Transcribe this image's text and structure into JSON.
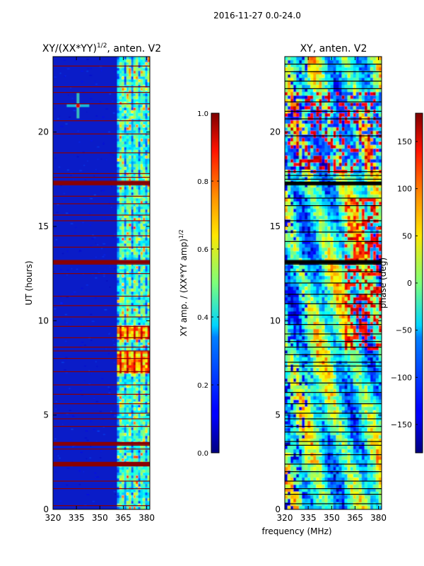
{
  "suptitle": "2016-11-27 0.0-24.0",
  "chart_data": [
    {
      "type": "heatmap",
      "title": "XY/(XX*YY)",
      "title_sup": "1/2",
      "title_suffix": ", anten. V2",
      "xlabel": "",
      "ylabel": "UT (hours)",
      "xlim": [
        320,
        382
      ],
      "ylim": [
        0,
        24
      ],
      "xticks": [
        320,
        335,
        350,
        365,
        380
      ],
      "yticks": [
        0,
        5,
        10,
        15,
        20
      ],
      "gap_hours": [
        0.2,
        1.1,
        1.5,
        2.3,
        2.4,
        2.5,
        3.2,
        3.4,
        3.5,
        4.4,
        4.8,
        5.1,
        5.6,
        6.1,
        6.6,
        7.3,
        8.0,
        8.4,
        8.6,
        9.1,
        9.7,
        10.2,
        10.8,
        11.3,
        12.5,
        13.0,
        13.1,
        13.2,
        13.9,
        14.5,
        15.3,
        15.6,
        16.2,
        16.6,
        17.2,
        17.3,
        17.4,
        17.6,
        17.8,
        18.9,
        19.9,
        20.6,
        21.5,
        22.1,
        22.4,
        23.5
      ],
      "bright_bands": [
        [
          7.2,
          8.4
        ],
        [
          9.0,
          9.8
        ]
      ],
      "rfi_spike": {
        "x": 336,
        "y": 21.4
      },
      "colorbar": {
        "label": "XY amp. / (XX*YY amp)",
        "label_sup": "1/2",
        "range": [
          0.0,
          1.0
        ],
        "ticks": [
          "0.0",
          "0.2",
          "0.4",
          "0.6",
          "0.8",
          "1.0"
        ]
      }
    },
    {
      "type": "heatmap",
      "title": "XY, anten. V2",
      "xlabel": "frequency (MHz)",
      "ylabel": "",
      "xlim": [
        320,
        382
      ],
      "ylim": [
        0,
        24
      ],
      "xticks": [
        320,
        335,
        350,
        365,
        380
      ],
      "yticks": [
        0,
        5,
        10,
        15,
        20
      ],
      "gap_hours": [
        0.3,
        0.8,
        1.1,
        1.5,
        2.0,
        2.4,
        2.9,
        3.4,
        3.6,
        4.1,
        4.4,
        4.8,
        5.1,
        5.6,
        6.2,
        6.7,
        7.3,
        7.6,
        7.8,
        8.2,
        8.6,
        8.9,
        9.3,
        9.8,
        10.3,
        10.9,
        11.4,
        12.0,
        12.6,
        13.0,
        13.1,
        13.2,
        14.2,
        14.7,
        15.3,
        16.1,
        16.5,
        17.2,
        17.5,
        17.7,
        17.9,
        19.8,
        20.7,
        21.1,
        21.6,
        22.3,
        22.7,
        23.2,
        23.6
      ],
      "colorbar": {
        "label": "phase (deg)",
        "range": [
          -180,
          180
        ],
        "ticks": [
          "−150",
          "−100",
          "−50",
          "0",
          "50",
          "100",
          "150"
        ],
        "tick_values": [
          -150,
          -100,
          -50,
          0,
          50,
          100,
          150
        ]
      }
    }
  ]
}
